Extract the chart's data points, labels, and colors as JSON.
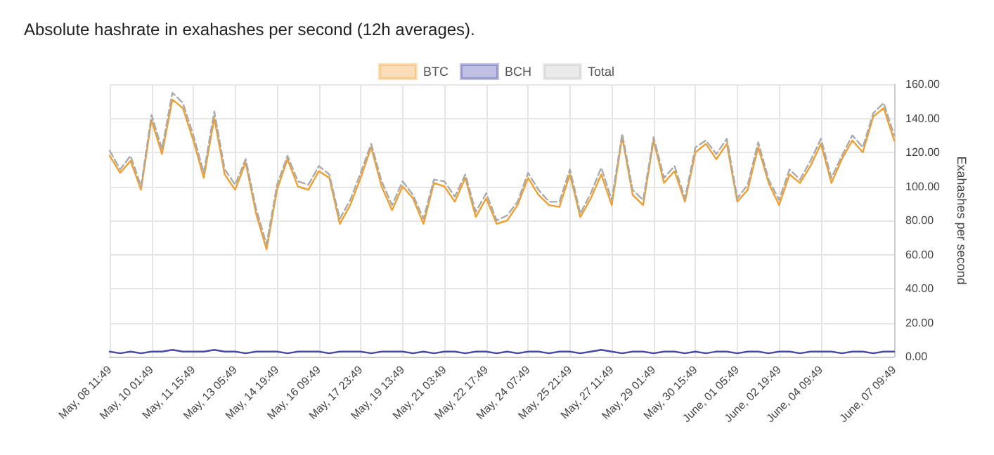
{
  "chart_data": {
    "type": "line",
    "title": "Absolute hashrate in exahashes per second (12h averages).",
    "ylabel": "Exahashes per second",
    "categories": [
      "May, 08 11:49",
      null,
      null,
      null,
      "May, 10 01:49",
      null,
      null,
      null,
      "May, 11 15:49",
      null,
      null,
      null,
      "May, 13 05:49",
      null,
      null,
      null,
      "May, 14 19:49",
      null,
      null,
      null,
      "May, 16 09:49",
      null,
      null,
      null,
      "May, 17 23:49",
      null,
      null,
      null,
      "May, 19 13:49",
      null,
      null,
      null,
      "May, 21 03:49",
      null,
      null,
      null,
      "May, 22 17:49",
      null,
      null,
      null,
      "May, 24 07:49",
      null,
      null,
      null,
      "May, 25 21:49",
      null,
      null,
      null,
      "May, 27 11:49",
      null,
      null,
      null,
      "May, 29 01:49",
      null,
      null,
      null,
      "May, 30 15:49",
      null,
      null,
      null,
      "June, 01 05:49",
      null,
      null,
      null,
      "June, 02 19:49",
      null,
      null,
      null,
      "June, 04 09:49",
      null,
      null,
      null,
      null,
      null,
      null,
      "June, 07 09:49"
    ],
    "series": [
      {
        "name": "BTC",
        "color": "#f0a030",
        "line_style": "solid",
        "values": [
          118,
          108,
          115,
          98,
          139,
          119,
          151,
          146,
          127,
          105,
          140,
          107,
          98,
          114,
          84,
          63,
          98,
          116,
          100,
          98,
          109,
          105,
          78,
          89,
          105,
          123,
          100,
          86,
          100,
          93,
          78,
          102,
          100,
          91,
          105,
          82,
          93,
          78,
          80,
          89,
          105,
          95,
          89,
          88,
          107,
          82,
          93,
          107,
          89,
          129,
          95,
          89,
          127,
          102,
          109,
          91,
          120,
          125,
          116,
          125,
          91,
          98,
          123,
          102,
          89,
          107,
          102,
          112,
          125,
          102,
          116,
          127,
          120,
          141,
          146,
          127
        ]
      },
      {
        "name": "BCH",
        "color": "#4848a8",
        "line_style": "solid",
        "values": [
          3,
          2,
          3,
          2,
          3,
          3,
          4,
          3,
          3,
          3,
          4,
          3,
          3,
          2,
          3,
          3,
          3,
          2,
          3,
          3,
          3,
          2,
          3,
          3,
          3,
          2,
          3,
          3,
          3,
          2,
          3,
          2,
          3,
          3,
          2,
          3,
          3,
          2,
          3,
          2,
          3,
          3,
          2,
          3,
          3,
          2,
          3,
          4,
          3,
          2,
          3,
          3,
          2,
          3,
          3,
          2,
          3,
          2,
          3,
          3,
          2,
          3,
          3,
          2,
          3,
          3,
          2,
          3,
          3,
          3,
          2,
          3,
          3,
          2,
          3,
          3
        ]
      },
      {
        "name": "Total",
        "color": "#aaaaaa",
        "line_style": "dashed",
        "values": [
          121,
          110,
          118,
          100,
          142,
          122,
          155,
          149,
          130,
          108,
          144,
          110,
          101,
          116,
          87,
          66,
          101,
          118,
          103,
          101,
          112,
          107,
          81,
          92,
          108,
          125,
          103,
          89,
          103,
          95,
          81,
          104,
          103,
          94,
          107,
          85,
          96,
          80,
          83,
          91,
          108,
          98,
          91,
          91,
          110,
          84,
          96,
          111,
          92,
          131,
          98,
          92,
          129,
          105,
          112,
          93,
          123,
          127,
          119,
          128,
          93,
          101,
          126,
          104,
          92,
          110,
          104,
          115,
          128,
          105,
          118,
          130,
          123,
          143,
          149,
          130
        ]
      }
    ],
    "ylim": [
      0,
      160
    ],
    "yticks": [
      {
        "value": 0,
        "label": "0.00"
      },
      {
        "value": 20,
        "label": "20.00"
      },
      {
        "value": 40,
        "label": "40.00"
      },
      {
        "value": 60,
        "label": "60.00"
      },
      {
        "value": 80,
        "label": "80.00"
      },
      {
        "value": 100,
        "label": "100.00"
      },
      {
        "value": 120,
        "label": "120.00"
      },
      {
        "value": 140,
        "label": "140.00"
      },
      {
        "value": 160,
        "label": "160.00"
      }
    ],
    "grid": true,
    "legend": "top",
    "marker": "none"
  }
}
